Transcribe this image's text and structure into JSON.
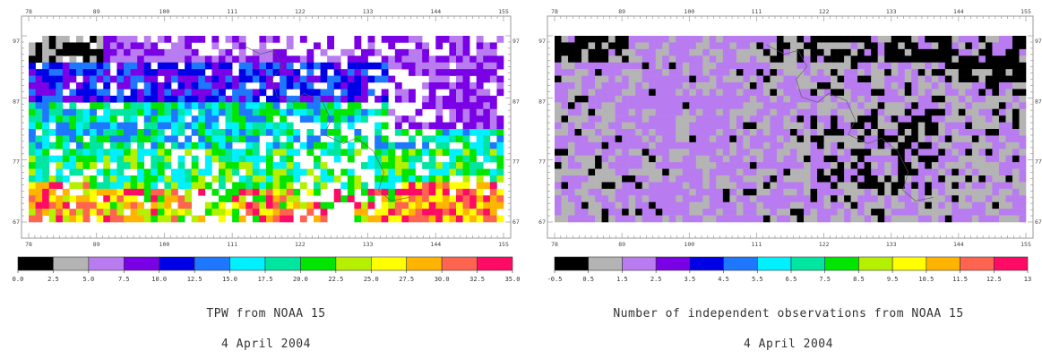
{
  "panels": [
    {
      "title": "TPW from NOAA 15",
      "date": "4 April 2004"
    },
    {
      "title": "Number of independent observations from NOAA 15",
      "date": "4 April 2004"
    }
  ],
  "chart_data": [
    {
      "type": "heatmap",
      "title": "TPW from NOAA 15",
      "subtitle": "4 April 2004",
      "x_tick_labels": [
        "78",
        "89",
        "100",
        "111",
        "122",
        "133",
        "144",
        "155"
      ],
      "y_tick_labels": [
        "97",
        "87",
        "77",
        "67"
      ],
      "colorbar": {
        "tick_labels": [
          "0.0",
          "2.5",
          "5.0",
          "7.5",
          "10.0",
          "12.5",
          "15.0",
          "17.5",
          "20.0",
          "22.5",
          "25.0",
          "27.5",
          "30.0",
          "32.5",
          "35.0"
        ],
        "colors": [
          "#000000",
          "#b4b4b4",
          "#b87cf0",
          "#7a00e6",
          "#0000e6",
          "#1e78ff",
          "#00f0ff",
          "#00e6a0",
          "#00e600",
          "#b4f000",
          "#ffff00",
          "#ffb400",
          "#ff6450",
          "#ff0a64"
        ]
      }
    },
    {
      "type": "heatmap",
      "title": "Number of independent observations from NOAA 15",
      "subtitle": "4 April 2004",
      "x_tick_labels": [
        "78",
        "89",
        "100",
        "111",
        "122",
        "133",
        "144",
        "155"
      ],
      "y_tick_labels": [
        "97",
        "87",
        "77",
        "67"
      ],
      "colorbar": {
        "tick_labels": [
          "-0.5",
          "0.5",
          "1.5",
          "2.5",
          "3.5",
          "4.5",
          "5.5",
          "6.5",
          "7.5",
          "8.5",
          "9.5",
          "10.5",
          "11.5",
          "12.5",
          "13"
        ],
        "colors": [
          "#000000",
          "#b4b4b4",
          "#b87cf0",
          "#7a00e6",
          "#0000e6",
          "#1e78ff",
          "#00f0ff",
          "#00e6a0",
          "#00e600",
          "#b4f000",
          "#ffff00",
          "#ffb400",
          "#ff6450",
          "#ff0a64"
        ]
      }
    }
  ]
}
